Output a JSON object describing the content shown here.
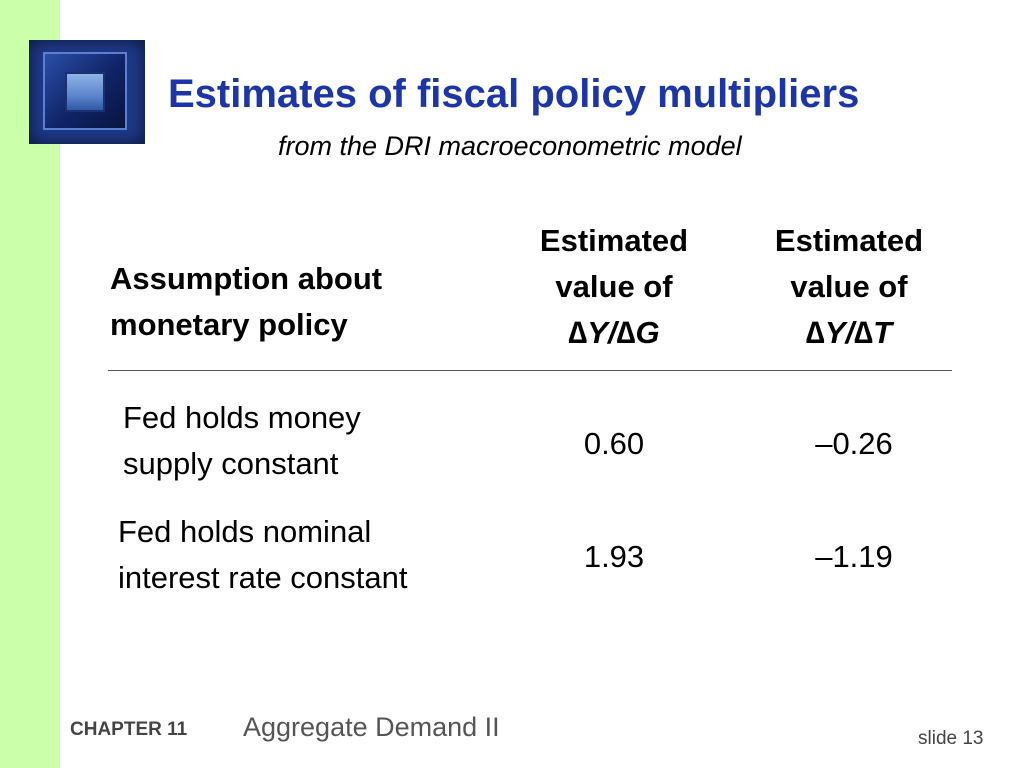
{
  "slide": {
    "title": "Estimates of fiscal policy multipliers",
    "subtitle": "from the DRI macroeconometric model",
    "logo_icon": "window-frame-icon",
    "accent_color": "#1c35a8",
    "sidebar_color": "#ccffaa"
  },
  "table": {
    "headers": {
      "assumption_line1": "Assumption about",
      "assumption_line2": "monetary policy",
      "col_g_line1": "Estimated",
      "col_g_line2": "value of",
      "col_g_ratio": "∆Y/∆G",
      "col_t_line1": "Estimated",
      "col_t_line2": "value of",
      "col_t_ratio": "∆Y/∆T"
    },
    "rows": [
      {
        "label_line1": "Fed holds money",
        "label_line2": "supply constant",
        "dy_dg": "0.60",
        "dy_dt": "–0.26"
      },
      {
        "label_line1": "Fed holds nominal",
        "label_line2": "interest rate constant",
        "dy_dg": "1.93",
        "dy_dt": "–1.19"
      }
    ]
  },
  "footer": {
    "chapter": "CHAPTER 11",
    "topic": "Aggregate Demand II",
    "slide_label": "slide 13"
  }
}
